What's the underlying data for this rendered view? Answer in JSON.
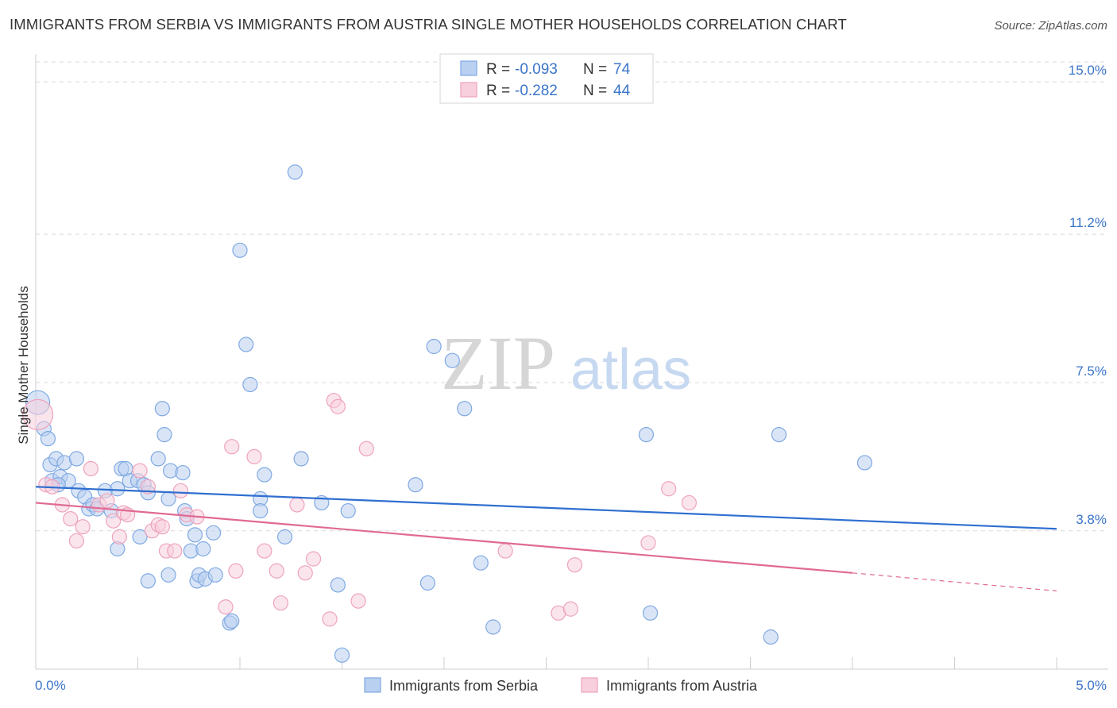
{
  "title": "IMMIGRANTS FROM SERBIA VS IMMIGRANTS FROM AUSTRIA SINGLE MOTHER HOUSEHOLDS CORRELATION CHART",
  "source": "Source: ZipAtlas.com",
  "watermark": {
    "zip": "ZIP",
    "atlas": "atlas"
  },
  "chart_data": {
    "type": "scatter",
    "title": "IMMIGRANTS FROM SERBIA VS IMMIGRANTS FROM AUSTRIA SINGLE MOTHER HOUSEHOLDS CORRELATION CHART",
    "xlabel": "",
    "ylabel": "Single Mother Households",
    "xlim": [
      0,
      5
    ],
    "ylim": [
      0.35,
      15.5
    ],
    "x_tick_labels": [
      {
        "value": 0,
        "label": "0.0%"
      },
      {
        "value": 5,
        "label": "5.0%"
      }
    ],
    "y_tick_labels": [
      {
        "value": 3.8,
        "label": "3.8%"
      },
      {
        "value": 7.5,
        "label": "7.5%"
      },
      {
        "value": 11.2,
        "label": "11.2%"
      },
      {
        "value": 15.0,
        "label": "15.0%"
      }
    ],
    "grid": true,
    "legend_position": "top-center",
    "series": [
      {
        "name": "Immigrants from Serbia",
        "color": "#7fa9e3",
        "fill": "#b9d0f0",
        "line_color": "#2f6fd0",
        "R": "-0.093",
        "N": "74",
        "trend": {
          "x": [
            0,
            5
          ],
          "y": [
            4.9,
            3.85
          ],
          "extrapolated": false
        },
        "points": [
          [
            0.01,
            7.0
          ],
          [
            0.04,
            6.35
          ],
          [
            0.06,
            6.1
          ],
          [
            0.07,
            5.45
          ],
          [
            0.1,
            5.6
          ],
          [
            0.14,
            5.5
          ],
          [
            0.2,
            5.6
          ],
          [
            0.08,
            5.05
          ],
          [
            0.12,
            5.15
          ],
          [
            0.16,
            5.05
          ],
          [
            0.11,
            4.95
          ],
          [
            0.21,
            4.8
          ],
          [
            0.24,
            4.65
          ],
          [
            0.26,
            4.35
          ],
          [
            0.28,
            4.45
          ],
          [
            0.3,
            4.35
          ],
          [
            0.34,
            4.8
          ],
          [
            0.37,
            4.3
          ],
          [
            0.4,
            4.85
          ],
          [
            0.42,
            5.35
          ],
          [
            0.44,
            5.35
          ],
          [
            0.46,
            5.05
          ],
          [
            0.5,
            5.05
          ],
          [
            0.53,
            4.95
          ],
          [
            0.55,
            4.75
          ],
          [
            0.62,
            6.85
          ],
          [
            0.6,
            5.6
          ],
          [
            0.63,
            6.2
          ],
          [
            0.66,
            5.3
          ],
          [
            0.72,
            5.25
          ],
          [
            0.73,
            4.3
          ],
          [
            0.74,
            4.1
          ],
          [
            0.78,
            3.7
          ],
          [
            0.65,
            4.6
          ],
          [
            0.4,
            3.35
          ],
          [
            0.51,
            3.65
          ],
          [
            0.55,
            2.55
          ],
          [
            0.65,
            2.7
          ],
          [
            0.76,
            3.3
          ],
          [
            0.79,
            2.55
          ],
          [
            0.8,
            2.7
          ],
          [
            0.82,
            3.35
          ],
          [
            0.83,
            2.6
          ],
          [
            0.87,
            3.75
          ],
          [
            0.88,
            2.7
          ],
          [
            0.95,
            1.5
          ],
          [
            0.96,
            1.55
          ],
          [
            1.0,
            10.8
          ],
          [
            1.03,
            8.45
          ],
          [
            1.05,
            7.45
          ],
          [
            1.1,
            4.6
          ],
          [
            1.1,
            4.3
          ],
          [
            1.12,
            5.2
          ],
          [
            1.22,
            3.65
          ],
          [
            1.27,
            12.75
          ],
          [
            1.3,
            5.6
          ],
          [
            1.4,
            4.5
          ],
          [
            1.48,
            2.45
          ],
          [
            1.5,
            0.7
          ],
          [
            1.53,
            4.3
          ],
          [
            1.86,
            4.95
          ],
          [
            1.92,
            2.5
          ],
          [
            1.95,
            8.4
          ],
          [
            2.04,
            8.05
          ],
          [
            2.1,
            6.85
          ],
          [
            2.18,
            3.0
          ],
          [
            2.24,
            1.4
          ],
          [
            2.99,
            6.2
          ],
          [
            3.01,
            1.75
          ],
          [
            3.6,
            1.15
          ],
          [
            3.64,
            6.2
          ],
          [
            4.06,
            5.5
          ]
        ]
      },
      {
        "name": "Immigrants from Austria",
        "color": "#eea3bc",
        "fill": "#f8cfdc",
        "line_color": "#e06a93",
        "R": "-0.282",
        "N": "44",
        "trend": {
          "x": [
            0,
            4.0
          ],
          "y": [
            4.5,
            2.75
          ],
          "extrapolated": true,
          "dash_to": [
            5,
            2.3
          ]
        },
        "points": [
          [
            0.01,
            6.7
          ],
          [
            0.05,
            4.95
          ],
          [
            0.08,
            4.9
          ],
          [
            0.13,
            4.45
          ],
          [
            0.17,
            4.1
          ],
          [
            0.2,
            3.55
          ],
          [
            0.23,
            3.9
          ],
          [
            0.27,
            5.35
          ],
          [
            0.31,
            4.45
          ],
          [
            0.35,
            4.55
          ],
          [
            0.38,
            4.05
          ],
          [
            0.41,
            3.65
          ],
          [
            0.43,
            4.25
          ],
          [
            0.45,
            4.2
          ],
          [
            0.51,
            5.3
          ],
          [
            0.55,
            4.9
          ],
          [
            0.57,
            3.8
          ],
          [
            0.6,
            3.95
          ],
          [
            0.62,
            3.9
          ],
          [
            0.64,
            3.3
          ],
          [
            0.68,
            3.3
          ],
          [
            0.71,
            4.8
          ],
          [
            0.74,
            4.2
          ],
          [
            0.79,
            4.15
          ],
          [
            0.93,
            1.9
          ],
          [
            0.96,
            5.9
          ],
          [
            0.98,
            2.8
          ],
          [
            1.07,
            5.65
          ],
          [
            1.12,
            3.3
          ],
          [
            1.18,
            2.8
          ],
          [
            1.2,
            2.0
          ],
          [
            1.28,
            4.45
          ],
          [
            1.32,
            2.75
          ],
          [
            1.36,
            3.1
          ],
          [
            1.44,
            1.6
          ],
          [
            1.46,
            7.05
          ],
          [
            1.48,
            6.9
          ],
          [
            1.58,
            2.05
          ],
          [
            1.62,
            5.85
          ],
          [
            2.3,
            3.3
          ],
          [
            2.56,
            1.75
          ],
          [
            2.62,
            1.85
          ],
          [
            2.64,
            2.95
          ],
          [
            3.0,
            3.5
          ],
          [
            3.1,
            4.85
          ],
          [
            3.2,
            4.5
          ]
        ]
      }
    ]
  }
}
